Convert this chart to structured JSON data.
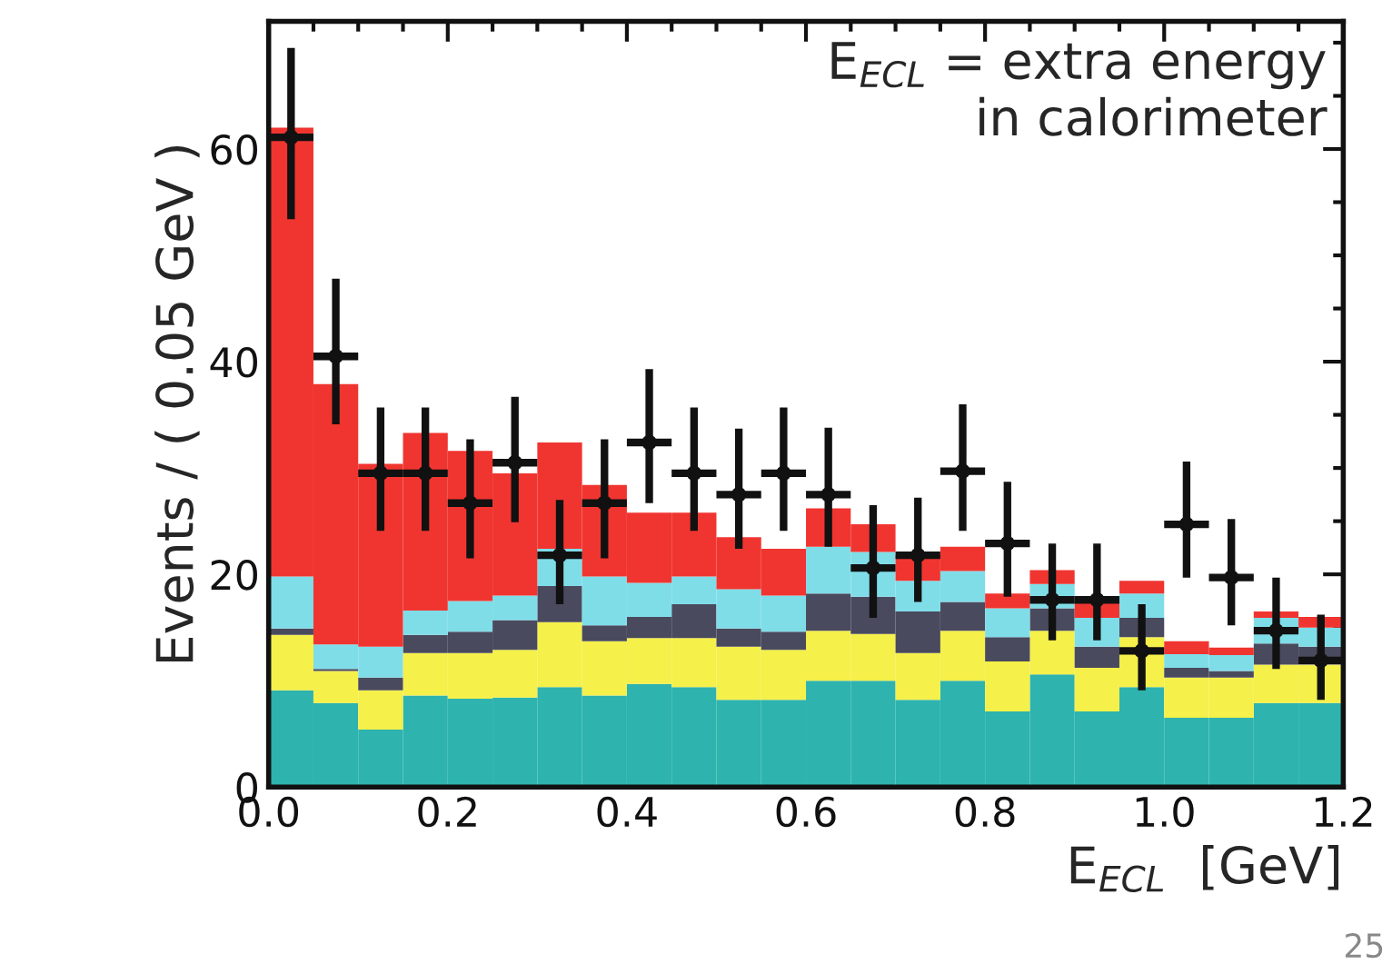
{
  "chart_data": {
    "type": "bar",
    "stacked": true,
    "xlabel": "E$_{ECL}$  [GeV]",
    "ylabel": "Events / ( 0.05 GeV )",
    "x": [
      0.025,
      0.075,
      0.125,
      0.175,
      0.225,
      0.275,
      0.325,
      0.375,
      0.425,
      0.475,
      0.525,
      0.575,
      0.625,
      0.675,
      0.725,
      0.775,
      0.825,
      0.875,
      0.925,
      0.975,
      1.025,
      1.075,
      1.125,
      1.175
    ],
    "series": [
      {
        "color": "#2eb3ae",
        "values": [
          9.1,
          7.9,
          5.4,
          8.6,
          8.3,
          8.4,
          9.4,
          8.6,
          9.7,
          9.4,
          8.2,
          8.2,
          10.0,
          10.0,
          8.2,
          10.0,
          7.1,
          10.6,
          7.1,
          9.4,
          6.5,
          6.5,
          7.9,
          7.9
        ]
      },
      {
        "color": "#f5f04a",
        "values": [
          5.2,
          3.0,
          3.7,
          4.0,
          4.3,
          4.5,
          6.1,
          5.1,
          4.3,
          4.6,
          5.0,
          4.7,
          4.7,
          4.4,
          4.4,
          4.7,
          4.7,
          4.1,
          4.1,
          4.7,
          3.8,
          3.8,
          3.6,
          3.6
        ]
      },
      {
        "color": "#4a4a5e",
        "values": [
          0.6,
          0.2,
          1.2,
          1.7,
          2.0,
          2.8,
          3.4,
          1.5,
          2.0,
          3.2,
          1.7,
          1.7,
          3.5,
          3.5,
          3.9,
          2.7,
          2.3,
          2.1,
          2.0,
          1.8,
          0.9,
          0.6,
          2.0,
          1.7
        ]
      },
      {
        "color": "#7fdde8",
        "values": [
          4.9,
          2.3,
          2.9,
          2.3,
          2.9,
          2.3,
          3.5,
          4.6,
          3.2,
          2.6,
          3.7,
          3.4,
          4.4,
          4.2,
          2.9,
          2.9,
          2.7,
          2.3,
          2.7,
          2.3,
          1.3,
          1.5,
          2.4,
          1.8
        ]
      },
      {
        "color": "#f03530",
        "values": [
          42.2,
          24.5,
          17.2,
          16.7,
          14.1,
          11.5,
          10.0,
          8.6,
          6.6,
          6.0,
          4.9,
          4.4,
          3.6,
          2.6,
          2.4,
          2.3,
          1.4,
          1.3,
          1.5,
          1.2,
          1.2,
          0.7,
          0.6,
          1.0
        ]
      },
      {
        "type": "scatter",
        "color": "#111111",
        "marker": "circle",
        "x": [
          0.025,
          0.075,
          0.125,
          0.175,
          0.225,
          0.275,
          0.325,
          0.375,
          0.425,
          0.475,
          0.525,
          0.575,
          0.625,
          0.675,
          0.725,
          0.775,
          0.825,
          0.875,
          0.925,
          0.975,
          1.025,
          1.075,
          1.125,
          1.175
        ],
        "values": [
          61.1,
          40.5,
          29.5,
          29.5,
          26.7,
          30.5,
          21.8,
          26.7,
          32.4,
          29.5,
          27.5,
          29.5,
          27.5,
          20.6,
          21.8,
          29.7,
          22.9,
          17.6,
          17.6,
          12.8,
          24.7,
          19.7,
          14.7,
          11.9
        ],
        "errors": [
          [
            53.4,
            69.5
          ],
          [
            34.1,
            47.8
          ],
          [
            24.1,
            35.7
          ],
          [
            24.1,
            35.7
          ],
          [
            21.5,
            32.7
          ],
          [
            24.9,
            36.7
          ],
          [
            17.2,
            27.0
          ],
          [
            21.5,
            32.7
          ],
          [
            26.7,
            39.3
          ],
          [
            24.1,
            35.7
          ],
          [
            22.4,
            33.7
          ],
          [
            24.1,
            35.7
          ],
          [
            22.6,
            33.8
          ],
          [
            15.9,
            26.5
          ],
          [
            17.4,
            27.2
          ],
          [
            24.1,
            36.0
          ],
          [
            17.9,
            28.7
          ],
          [
            13.8,
            22.9
          ],
          [
            13.8,
            22.9
          ],
          [
            9.1,
            17.2
          ],
          [
            19.7,
            30.6
          ],
          [
            15.2,
            25.2
          ],
          [
            11.1,
            19.7
          ],
          [
            8.2,
            16.2
          ]
        ],
        "xerrors": [
          0.025,
          0.025,
          0.025,
          0.025,
          0.025,
          0.025,
          0.025,
          0.025,
          0.025,
          0.025,
          0.025,
          0.025,
          0.025,
          0.025,
          0.025,
          0.025,
          0.025,
          0.025,
          0.025,
          0.025,
          0.025,
          0.025,
          0.025,
          0.025
        ]
      }
    ],
    "xlim": [
      0.0,
      1.2
    ],
    "xticks": [
      {
        "value": 0.0,
        "label": "0.0"
      },
      {
        "value": 0.2,
        "label": "0.2"
      },
      {
        "value": 0.4,
        "label": "0.4"
      },
      {
        "value": 0.6,
        "label": "0.6"
      },
      {
        "value": 0.8,
        "label": "0.8"
      },
      {
        "value": 1.0,
        "label": "1.0"
      },
      {
        "value": 1.2,
        "label": "1.2"
      }
    ],
    "ylim": [
      0,
      72
    ],
    "yticks": [
      0,
      20,
      40,
      60
    ],
    "grid": false,
    "annotations": [
      "E$_{ECL}$ = extra energy\nin calorimeter",
      "25"
    ]
  }
}
